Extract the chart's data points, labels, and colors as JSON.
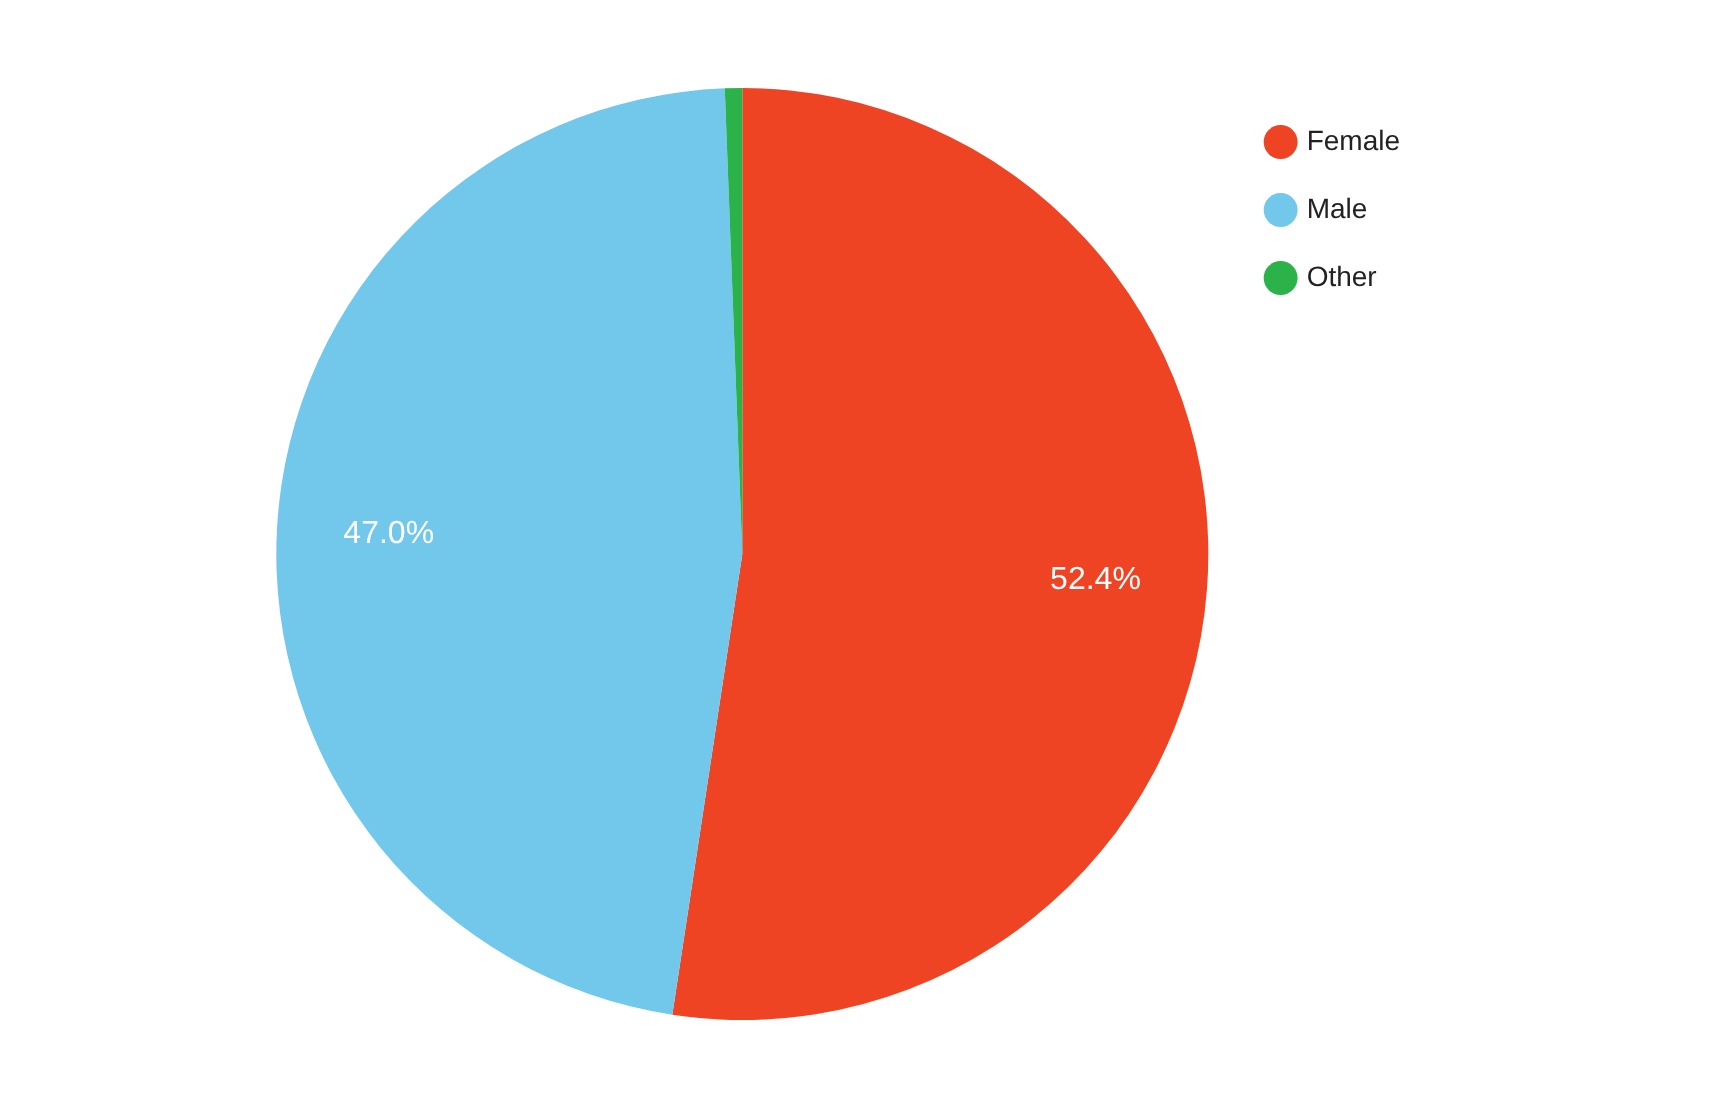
{
  "chart_data": {
    "type": "pie",
    "categories": [
      "Female",
      "Male",
      "Other"
    ],
    "values": [
      52.4,
      47.0,
      0.6
    ],
    "colors": [
      "#ee4423",
      "#71c8ea",
      "#2bb34a"
    ],
    "value_labels": [
      "52.4%",
      "47.0%",
      null
    ],
    "legend": "top right"
  }
}
